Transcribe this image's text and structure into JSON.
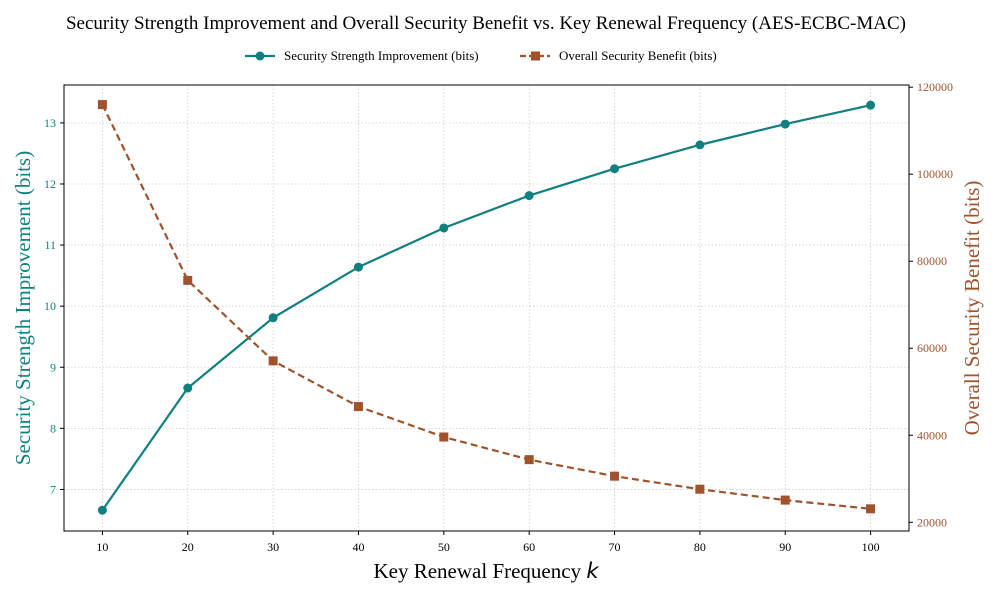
{
  "chart_data": {
    "type": "line",
    "title": "Security Strength Improvement and Overall Security Benefit vs. Key Renewal Frequency (AES-ECBC-MAC)",
    "xlabel_text": "Key Renewal Frequency ",
    "xlabel_var": "k",
    "ylabel_left": "Security Strength Improvement (bits)",
    "ylabel_right": "Overall Security Benefit (bits)",
    "x": [
      10,
      20,
      30,
      40,
      50,
      60,
      70,
      80,
      90,
      100
    ],
    "x_ticks": [
      "10",
      "20",
      "30",
      "40",
      "50",
      "60",
      "70",
      "80",
      "90",
      "100"
    ],
    "xlim": [
      5.5,
      104.5
    ],
    "y_left_ticks": [
      7,
      8,
      9,
      10,
      11,
      12,
      13
    ],
    "y_left_lim": [
      6.32,
      13.62
    ],
    "y_right_ticks": [
      20000,
      40000,
      60000,
      80000,
      100000,
      120000
    ],
    "y_right_lim": [
      18000,
      120500
    ],
    "grid": true,
    "legend_position": "top-center",
    "series": [
      {
        "name": "Security Strength Improvement (bits)",
        "axis": "left",
        "color": "#0f7f7f",
        "marker": "circle",
        "line_style": "solid",
        "values": [
          6.66,
          8.66,
          9.81,
          10.64,
          11.28,
          11.81,
          12.25,
          12.64,
          12.98,
          13.29
        ]
      },
      {
        "name": "Overall Security Benefit (bits)",
        "axis": "right",
        "color": "#a0522d",
        "marker": "square",
        "line_style": "dashed",
        "values": [
          116000,
          75600,
          57100,
          46600,
          39600,
          34400,
          30600,
          27600,
          25100,
          23100
        ]
      }
    ]
  }
}
